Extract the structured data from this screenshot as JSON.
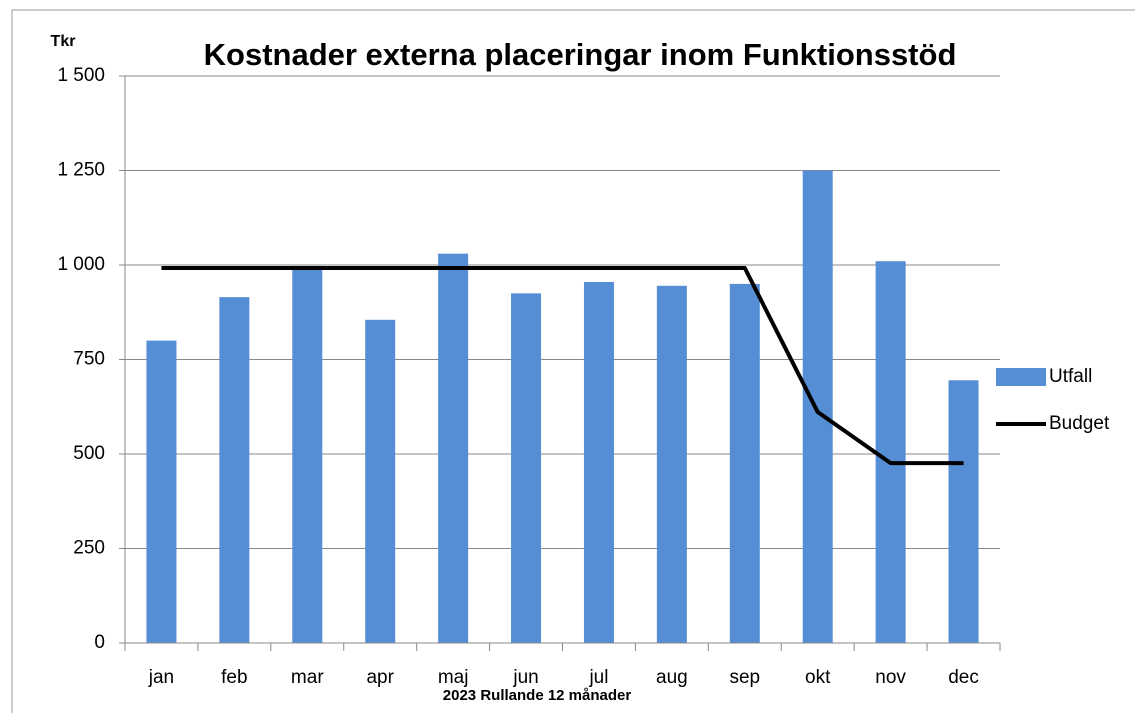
{
  "chart_data": {
    "type": "bar",
    "title": "Kostnader externa placeringar inom Funktionsstöd",
    "y_label": "Tkr",
    "x_label": "2023 Rullande 12 månader",
    "categories": [
      "jan",
      "feb",
      "mar",
      "apr",
      "maj",
      "jun",
      "jul",
      "aug",
      "sep",
      "okt",
      "nov",
      "dec"
    ],
    "series": [
      {
        "name": "Utfall",
        "type": "bar",
        "color": "#558ed5",
        "values": [
          800,
          915,
          995,
          855,
          1030,
          925,
          955,
          945,
          950,
          1250,
          1010,
          695
        ]
      },
      {
        "name": "Budget",
        "type": "line",
        "color": "#000000",
        "values": [
          992,
          992,
          992,
          992,
          992,
          992,
          992,
          992,
          992,
          611,
          476,
          476
        ]
      }
    ],
    "ylim": [
      0,
      1500
    ],
    "yticks": [
      0,
      250,
      500,
      750,
      {
        "value": 1000,
        "label": "1 000"
      },
      {
        "value": 1250,
        "label": "1 250"
      },
      {
        "value": 1500,
        "label": "1 500"
      }
    ],
    "grid": true,
    "legend": "right"
  }
}
